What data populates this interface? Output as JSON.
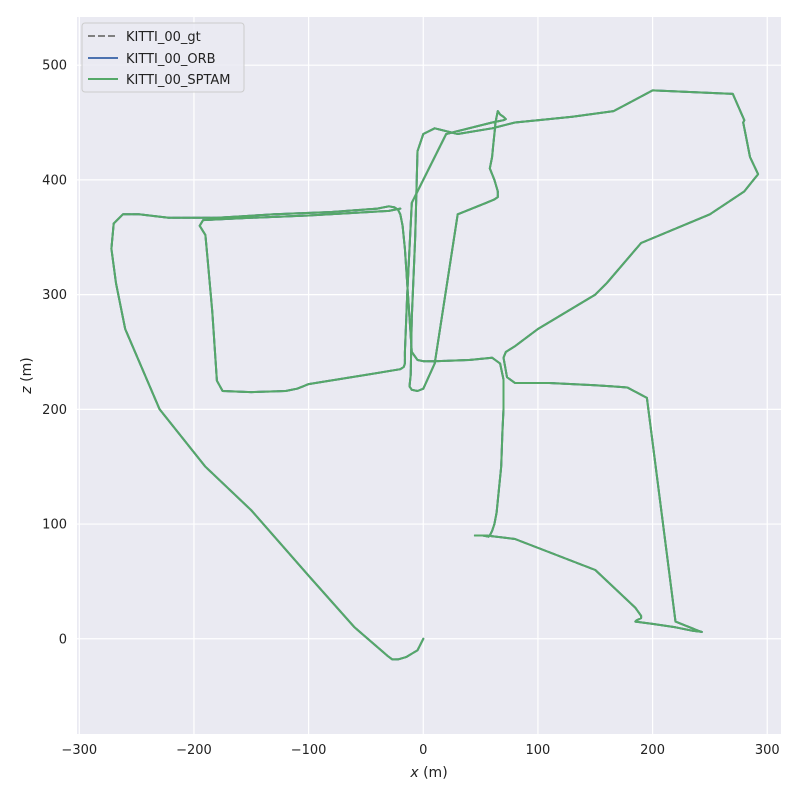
{
  "chart_data": {
    "type": "line",
    "title": "",
    "xlabel_var": "x",
    "xlabel_unit": " (m)",
    "ylabel_var": "z",
    "ylabel_unit": " (m)",
    "xlim": [
      -302,
      312
    ],
    "ylim": [
      -83,
      542
    ],
    "xticks": [
      -300,
      -200,
      -100,
      0,
      100,
      200,
      300
    ],
    "yticks": [
      0,
      100,
      200,
      300,
      400,
      500
    ],
    "xtick_labels": [
      "−300",
      "−200",
      "−100",
      "0",
      "100",
      "200",
      "300"
    ],
    "ytick_labels": [
      "0",
      "100",
      "200",
      "300",
      "400",
      "500"
    ],
    "grid": true,
    "legend_position": "top-left",
    "series": [
      {
        "name": "KITTI_00_gt",
        "color": "#808080",
        "dash": "dashed",
        "x": [
          0,
          -5,
          -10,
          -15,
          -22,
          -27,
          -31,
          -60,
          -100,
          -150,
          -190,
          -230,
          -260,
          -268,
          -272,
          -270,
          -262,
          -248,
          -222,
          -180,
          -130,
          -80,
          -40,
          -30,
          -25,
          -22,
          -20,
          -18,
          -16,
          -14,
          -12,
          -10,
          -5,
          0,
          10,
          40,
          60,
          67,
          70,
          70,
          69,
          68,
          66,
          64,
          62,
          60,
          58,
          57,
          52,
          45,
          55,
          80,
          150,
          185,
          190,
          190,
          188,
          186,
          185,
          200,
          220,
          235,
          243,
          240,
          220,
          195,
          178,
          165,
          150,
          110,
          80,
          73,
          70,
          72,
          80,
          100,
          150,
          160,
          190,
          250,
          280,
          288,
          292,
          285,
          281,
          279,
          280,
          270,
          200,
          166,
          130,
          100,
          80,
          60,
          30,
          10,
          0,
          -5,
          -7,
          -10,
          -11,
          -12,
          -10,
          -5,
          0,
          10,
          30,
          55,
          62,
          65,
          65,
          62,
          58,
          60,
          61,
          62,
          63,
          64,
          65,
          67,
          70,
          72,
          70,
          60,
          20,
          -10,
          -14,
          -16,
          -16,
          -17,
          -20,
          -50,
          -100,
          -105,
          -110,
          -120,
          -150,
          -175,
          -180,
          -182,
          -184,
          -188,
          -190,
          -195,
          -192,
          -150,
          -100,
          -30,
          -20
        ],
        "y": [
          0,
          -10,
          -13,
          -16,
          -18,
          -18,
          -15,
          10,
          55,
          112,
          150,
          200,
          270,
          310,
          340,
          362,
          370,
          370,
          367,
          367,
          370,
          372,
          375,
          377,
          376,
          374,
          370,
          360,
          340,
          310,
          280,
          250,
          243,
          242,
          242,
          243,
          245,
          240,
          226,
          200,
          180,
          150,
          130,
          110,
          100,
          94,
          90,
          89,
          90,
          90,
          90,
          87,
          60,
          27,
          20,
          18,
          17,
          16,
          15,
          13,
          10,
          7,
          6,
          7,
          15,
          210,
          219,
          220,
          221,
          223,
          223,
          228,
          245,
          250,
          255,
          270,
          300,
          310,
          345,
          370,
          390,
          400,
          405,
          420,
          440,
          450,
          452,
          475,
          478,
          460,
          455,
          452,
          450,
          445,
          440,
          445,
          440,
          425,
          350,
          280,
          230,
          220,
          217,
          216,
          218,
          240,
          370,
          380,
          383,
          385,
          390,
          400,
          410,
          420,
          430,
          440,
          450,
          455,
          460,
          457,
          455,
          453,
          452,
          450,
          440,
          380,
          300,
          250,
          240,
          237,
          235,
          230,
          222,
          220,
          218,
          216,
          215,
          216,
          225,
          255,
          285,
          330,
          352,
          360,
          365,
          367,
          369,
          373,
          375
        ]
      },
      {
        "name": "KITTI_00_ORB",
        "color": "#4c72b0",
        "dash": "solid",
        "x": [
          0,
          -5,
          -10,
          -15,
          -22,
          -27,
          -31,
          -60,
          -100,
          -150,
          -190,
          -230,
          -260,
          -268,
          -272,
          -270,
          -262,
          -248,
          -222,
          -180,
          -130,
          -80,
          -40,
          -30,
          -25,
          -22,
          -20,
          -18,
          -16,
          -14,
          -12,
          -10,
          -5,
          0,
          10,
          40,
          60,
          67,
          70,
          70,
          69,
          68,
          66,
          64,
          62,
          60,
          58,
          57,
          52,
          45,
          55,
          80,
          150,
          185,
          190,
          190,
          188,
          186,
          185,
          200,
          220,
          235,
          243,
          240,
          220,
          195,
          178,
          165,
          150,
          110,
          80,
          73,
          70,
          72,
          80,
          100,
          150,
          160,
          190,
          250,
          280,
          288,
          292,
          285,
          281,
          279,
          280,
          270,
          200,
          166,
          130,
          100,
          80,
          60,
          30,
          10,
          0,
          -5,
          -7,
          -10,
          -11,
          -12,
          -10,
          -5,
          0,
          10,
          30,
          55,
          62,
          65,
          65,
          62,
          58,
          60,
          61,
          62,
          63,
          64,
          65,
          67,
          70,
          72,
          70,
          60,
          20,
          -10,
          -14,
          -16,
          -16,
          -17,
          -20,
          -50,
          -100,
          -105,
          -110,
          -120,
          -150,
          -175,
          -180,
          -182,
          -184,
          -188,
          -190,
          -195,
          -192,
          -150,
          -100,
          -30,
          -20
        ],
        "y": [
          0,
          -10,
          -13,
          -16,
          -18,
          -18,
          -15,
          10,
          55,
          112,
          150,
          200,
          270,
          310,
          340,
          362,
          370,
          370,
          367,
          367,
          370,
          372,
          375,
          377,
          376,
          374,
          370,
          360,
          340,
          310,
          280,
          250,
          243,
          242,
          242,
          243,
          245,
          240,
          226,
          200,
          180,
          150,
          130,
          110,
          100,
          94,
          90,
          89,
          90,
          90,
          90,
          87,
          60,
          27,
          20,
          18,
          17,
          16,
          15,
          13,
          10,
          7,
          6,
          7,
          15,
          210,
          219,
          220,
          221,
          223,
          223,
          228,
          245,
          250,
          255,
          270,
          300,
          310,
          345,
          370,
          390,
          400,
          405,
          420,
          440,
          450,
          452,
          475,
          478,
          460,
          455,
          452,
          450,
          445,
          440,
          445,
          440,
          425,
          350,
          280,
          230,
          220,
          217,
          216,
          218,
          240,
          370,
          380,
          383,
          385,
          390,
          400,
          410,
          420,
          430,
          440,
          450,
          455,
          460,
          457,
          455,
          453,
          452,
          450,
          440,
          380,
          300,
          250,
          240,
          237,
          235,
          230,
          222,
          220,
          218,
          216,
          215,
          216,
          225,
          255,
          285,
          330,
          352,
          360,
          365,
          367,
          369,
          373,
          375
        ]
      },
      {
        "name": "KITTI_00_SPTAM",
        "color": "#55a868",
        "dash": "solid",
        "x": [
          0,
          -5,
          -10,
          -15,
          -22,
          -27,
          -31,
          -60,
          -100,
          -150,
          -190,
          -230,
          -260,
          -268,
          -272,
          -270,
          -262,
          -248,
          -222,
          -180,
          -130,
          -80,
          -40,
          -30,
          -25,
          -22,
          -20,
          -18,
          -16,
          -14,
          -12,
          -10,
          -5,
          0,
          10,
          40,
          60,
          67,
          70,
          70,
          69,
          68,
          66,
          64,
          62,
          60,
          58,
          57,
          52,
          45,
          55,
          80,
          150,
          185,
          190,
          190,
          188,
          186,
          185,
          200,
          220,
          235,
          243,
          240,
          220,
          195,
          178,
          165,
          150,
          110,
          80,
          73,
          70,
          72,
          80,
          100,
          150,
          160,
          190,
          250,
          280,
          288,
          292,
          285,
          281,
          279,
          280,
          270,
          200,
          166,
          130,
          100,
          80,
          60,
          30,
          10,
          0,
          -5,
          -7,
          -10,
          -11,
          -12,
          -10,
          -5,
          0,
          10,
          30,
          55,
          62,
          65,
          65,
          62,
          58,
          60,
          61,
          62,
          63,
          64,
          65,
          67,
          70,
          72,
          70,
          60,
          20,
          -10,
          -14,
          -16,
          -16,
          -17,
          -20,
          -50,
          -100,
          -105,
          -110,
          -120,
          -150,
          -175,
          -180,
          -182,
          -184,
          -188,
          -190,
          -195,
          -192,
          -150,
          -100,
          -30,
          -20
        ],
        "y": [
          0,
          -10,
          -13,
          -16,
          -18,
          -18,
          -15,
          10,
          55,
          112,
          150,
          200,
          270,
          310,
          340,
          362,
          370,
          370,
          367,
          367,
          370,
          372,
          375,
          377,
          376,
          374,
          370,
          360,
          340,
          310,
          280,
          250,
          243,
          242,
          242,
          243,
          245,
          240,
          226,
          200,
          180,
          150,
          130,
          110,
          100,
          94,
          90,
          89,
          90,
          90,
          90,
          87,
          60,
          27,
          20,
          18,
          17,
          16,
          15,
          13,
          10,
          7,
          6,
          7,
          15,
          210,
          219,
          220,
          221,
          223,
          223,
          228,
          245,
          250,
          255,
          270,
          300,
          310,
          345,
          370,
          390,
          400,
          405,
          420,
          440,
          450,
          452,
          475,
          478,
          460,
          455,
          452,
          450,
          445,
          440,
          445,
          440,
          425,
          350,
          280,
          230,
          220,
          217,
          216,
          218,
          240,
          370,
          380,
          383,
          385,
          390,
          400,
          410,
          420,
          430,
          440,
          450,
          455,
          460,
          457,
          455,
          453,
          452,
          450,
          440,
          380,
          300,
          250,
          240,
          237,
          235,
          230,
          222,
          220,
          218,
          216,
          215,
          216,
          225,
          255,
          285,
          330,
          352,
          360,
          365,
          367,
          369,
          373,
          375
        ]
      }
    ]
  }
}
